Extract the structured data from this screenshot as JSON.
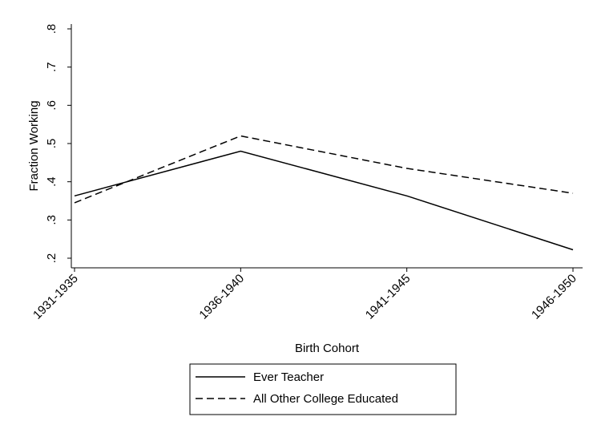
{
  "chart_data": {
    "type": "line",
    "xlabel": "Birth Cohort",
    "ylabel": "Fraction Working",
    "categories": [
      "1931-1935",
      "1936-1940",
      "1941-1945",
      "1946-1950"
    ],
    "ylim": [
      0.2,
      0.8
    ],
    "yticks": [
      {
        "value": 0.2,
        "label": ".2"
      },
      {
        "value": 0.3,
        "label": ".3"
      },
      {
        "value": 0.4,
        "label": ".4"
      },
      {
        "value": 0.5,
        "label": ".5"
      },
      {
        "value": 0.6,
        "label": ".6"
      },
      {
        "value": 0.7,
        "label": ".7"
      },
      {
        "value": 0.8,
        "label": ".8"
      }
    ],
    "grid": false,
    "legend_position": "bottom",
    "series": [
      {
        "name": "Ever Teacher",
        "style": "solid",
        "color": "#000000",
        "values": [
          0.363,
          0.48,
          0.363,
          0.222
        ]
      },
      {
        "name": "All Other College Educated",
        "style": "dashed",
        "color": "#000000",
        "values": [
          0.345,
          0.52,
          0.435,
          0.37
        ]
      }
    ]
  }
}
